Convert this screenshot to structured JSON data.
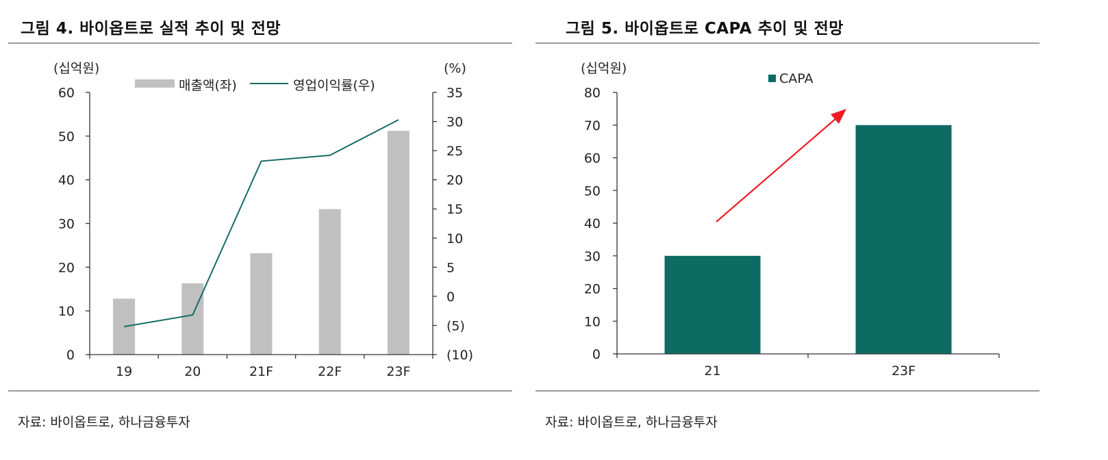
{
  "colors": {
    "bar_gray": "#c0c0c0",
    "line_teal": "#136b65",
    "bar_teal": "#0e6b63",
    "arrow_red": "#ee1c25",
    "rule": "#9a9a9a"
  },
  "figures": [
    {
      "title": "그림 4. 바이옵트로 실적 추이 및 전망",
      "source": "자료: 바이옵트로, 하나금융투자"
    },
    {
      "title": "그림 5. 바이옵트로 CAPA 추이 및 전망",
      "source": "자료: 바이옵트로, 하나금융투자"
    }
  ],
  "chart_data": [
    {
      "type": "bar+line",
      "categories": [
        "19",
        "20",
        "21F",
        "22F",
        "23F"
      ],
      "series": [
        {
          "name": "매출액(좌)",
          "type": "bar",
          "axis": "left",
          "values": [
            12.8,
            16.3,
            23.2,
            33.3,
            51.2
          ]
        },
        {
          "name": "영업이익률(우)",
          "type": "line",
          "axis": "right",
          "values": [
            -5.2,
            -3.2,
            23.2,
            24.2,
            30.3
          ]
        }
      ],
      "y_left": {
        "label": "(십억원)",
        "ylim": [
          0,
          60
        ],
        "ticks": [
          0,
          10,
          20,
          30,
          40,
          50,
          60
        ],
        "tick_labels": [
          "0",
          "10",
          "20",
          "30",
          "40",
          "50",
          "60"
        ]
      },
      "y_right": {
        "label": "(%)",
        "ylim": [
          -10,
          35
        ],
        "ticks": [
          -10,
          -5,
          0,
          5,
          10,
          15,
          20,
          25,
          30,
          35
        ],
        "tick_labels": [
          "(10)",
          "(5)",
          "0",
          "5",
          "10",
          "15",
          "20",
          "25",
          "30",
          "35"
        ]
      },
      "grid": false,
      "legend": "top"
    },
    {
      "type": "bar",
      "categories": [
        "21",
        "23F"
      ],
      "series": [
        {
          "name": "CAPA",
          "values": [
            30,
            70
          ]
        }
      ],
      "y": {
        "label": "(십억원)",
        "ylim": [
          0,
          80
        ],
        "ticks": [
          0,
          10,
          20,
          30,
          40,
          50,
          60,
          70,
          80
        ],
        "tick_labels": [
          "0",
          "10",
          "20",
          "30",
          "40",
          "50",
          "60",
          "70",
          "80"
        ]
      },
      "annotation": "red upward arrow from 21 toward 23F",
      "grid": false,
      "legend": "top"
    }
  ]
}
